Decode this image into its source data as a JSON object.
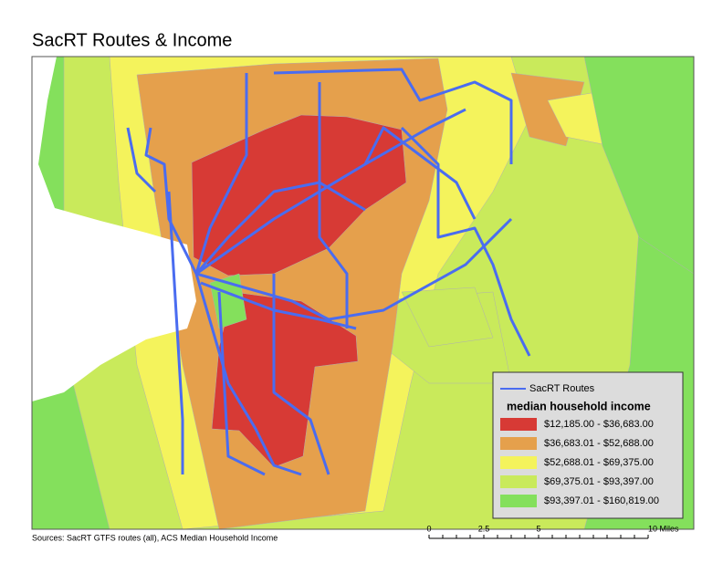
{
  "title": "SacRT Routes & Income",
  "legend": {
    "route_label": "SacRT Routes",
    "route_color": "#4a6cf0",
    "heading": "median household income",
    "classes": [
      {
        "label": "$12,185.00 - $36,683.00",
        "color": "#d73a35"
      },
      {
        "label": "$36,683.01 - $52,688.00",
        "color": "#e5a04c"
      },
      {
        "label": "$52,688.01 - $69,375.00",
        "color": "#f4f35c"
      },
      {
        "label": "$69,375.01 - $93,397.00",
        "color": "#c9ea5b"
      },
      {
        "label": "$93,397.01 - $160,819.00",
        "color": "#84e05c"
      }
    ]
  },
  "source": "Sources: SacRT GTFS routes (all), ACS Median Household Income",
  "scale": [
    "0",
    "2.5",
    "5",
    "10 Miles"
  ]
}
